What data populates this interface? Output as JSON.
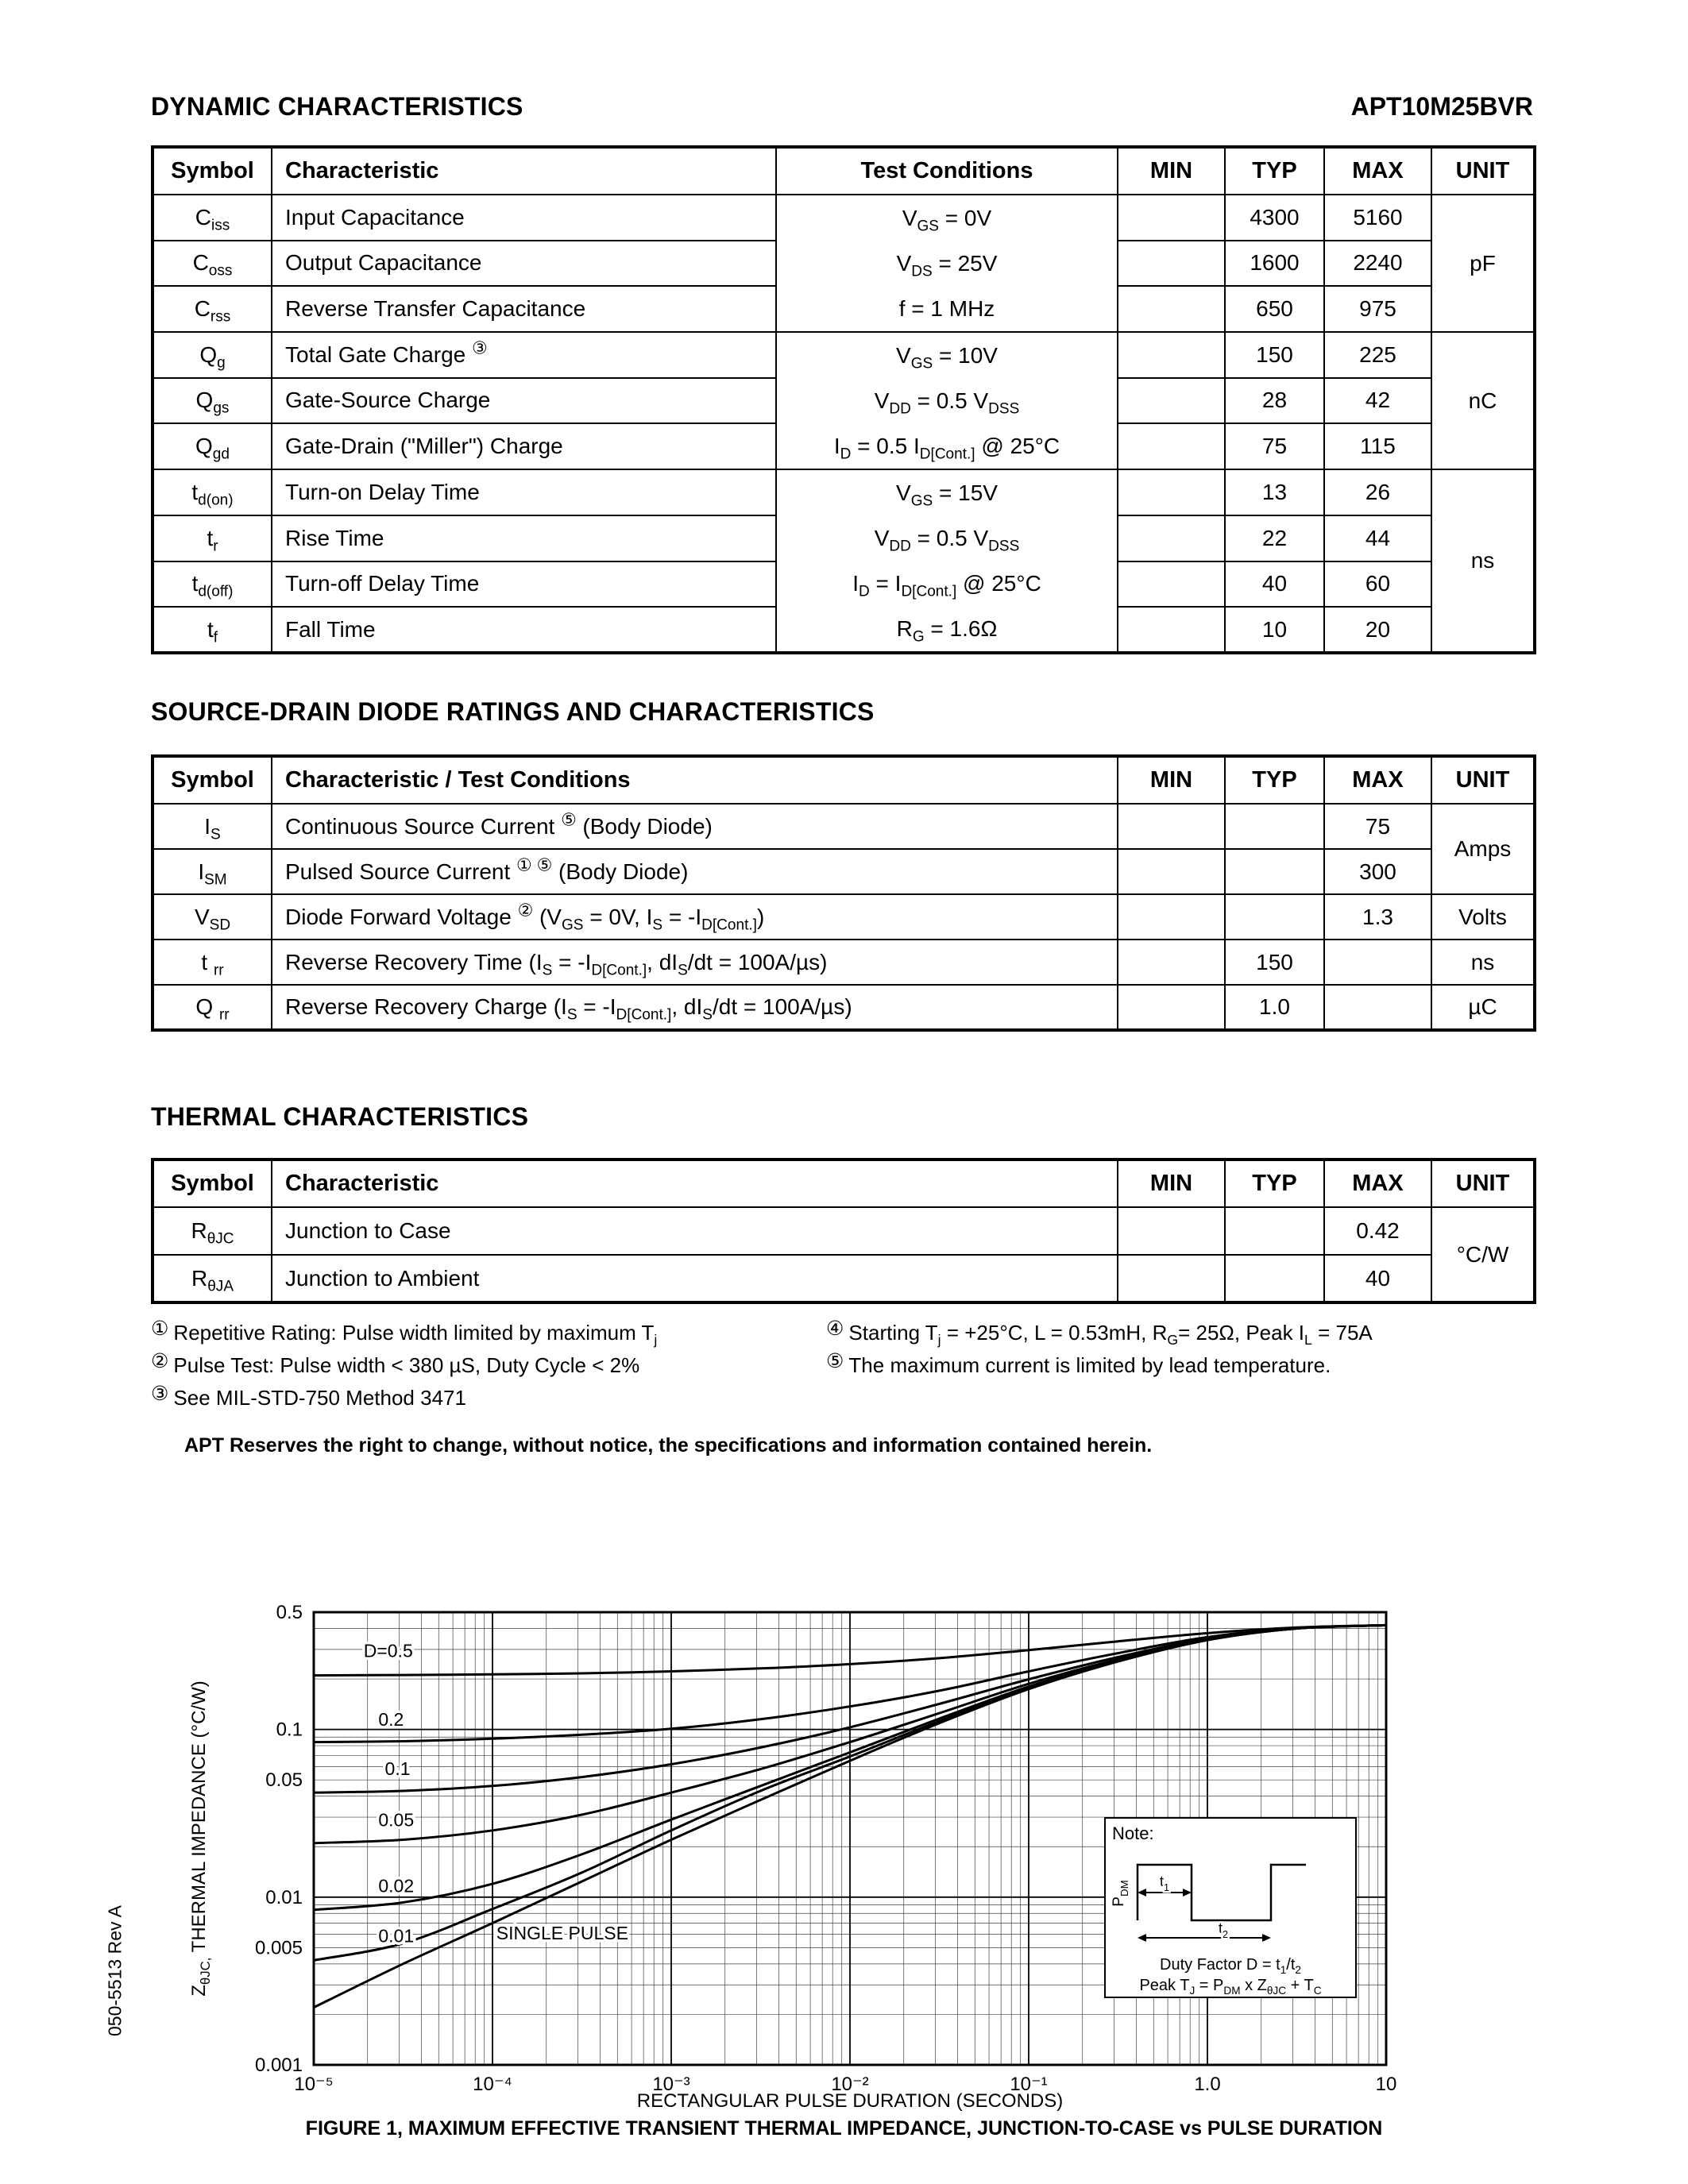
{
  "page": {
    "section1_title": "DYNAMIC CHARACTERISTICS",
    "part_number": "APT10M25BVR",
    "section2_title": "SOURCE-DRAIN DIODE RATINGS AND CHARACTERISTICS",
    "section3_title": "THERMAL CHARACTERISTICS",
    "disclaimer": "APT Reserves the right to change, without notice, the specifications and information contained herein.",
    "doc_number": "050-5513 Rev A"
  },
  "dynamic_table": {
    "headers": [
      "Symbol",
      "Characteristic",
      "Test Conditions",
      "MIN",
      "TYP",
      "MAX",
      "UNIT"
    ],
    "rows": [
      {
        "symbol": "C~iss~",
        "characteristic": "Input Capacitance",
        "min": "",
        "typ": "4300",
        "max": "5160"
      },
      {
        "symbol": "C~oss~",
        "characteristic": "Output Capacitance",
        "min": "",
        "typ": "1600",
        "max": "2240"
      },
      {
        "symbol": "C~rss~",
        "characteristic": "Reverse Transfer Capacitance",
        "min": "",
        "typ": "650",
        "max": "975"
      },
      {
        "symbol": "Q~g~",
        "characteristic": "Total Gate Charge ^③^",
        "min": "",
        "typ": "150",
        "max": "225"
      },
      {
        "symbol": "Q~gs~",
        "characteristic": "Gate-Source Charge",
        "min": "",
        "typ": "28",
        "max": "42"
      },
      {
        "symbol": "Q~gd~",
        "characteristic": "Gate-Drain (\"Miller\") Charge",
        "min": "",
        "typ": "75",
        "max": "115"
      },
      {
        "symbol": "t~d(on)~",
        "characteristic": "Turn-on Delay Time",
        "min": "",
        "typ": "13",
        "max": "26"
      },
      {
        "symbol": "t~r~",
        "characteristic": "Rise Time",
        "min": "",
        "typ": "22",
        "max": "44"
      },
      {
        "symbol": "t~d(off)~",
        "characteristic": "Turn-off Delay Time",
        "min": "",
        "typ": "40",
        "max": "60"
      },
      {
        "symbol": "t~f~",
        "characteristic": "Fall Time",
        "min": "",
        "typ": "10",
        "max": "20"
      }
    ],
    "cond_groups": [
      {
        "start": 0,
        "span": 3,
        "unit": "pF",
        "conditions": [
          "V~GS~ = 0V",
          "V~DS~ = 25V",
          "f = 1 MHz"
        ]
      },
      {
        "start": 3,
        "span": 3,
        "unit": "nC",
        "conditions": [
          "V~GS~ = 10V",
          "V~DD~ = 0.5 V~DSS~",
          "I~D~ = 0.5 I~D[Cont.]~ @ 25°C"
        ]
      },
      {
        "start": 6,
        "span": 4,
        "unit": "ns",
        "conditions": [
          "V~GS~ = 15V",
          "V~DD~ = 0.5 V~DSS~",
          "I~D~ = I~D[Cont.]~ @ 25°C",
          "R~G~ = 1.6Ω"
        ]
      }
    ]
  },
  "diode_table": {
    "headers": [
      "Symbol",
      "Characteristic / Test Conditions",
      "MIN",
      "TYP",
      "MAX",
      "UNIT"
    ],
    "rows": [
      {
        "symbol": "I~S~",
        "characteristic": "Continuous Source Current ^⑤^ (Body Diode)",
        "min": "",
        "typ": "",
        "max": "75"
      },
      {
        "symbol": "I~SM~",
        "characteristic": "Pulsed Source Current ^① ⑤^  (Body Diode)",
        "min": "",
        "typ": "",
        "max": "300"
      },
      {
        "symbol": "V~SD~",
        "characteristic": "Diode Forward Voltage ^②^ (V~GS~ = 0V, I~S~ = -I~D[Cont.]~)",
        "min": "",
        "typ": "",
        "max": "1.3"
      },
      {
        "symbol": "t ~rr~",
        "characteristic": "Reverse Recovery Time  (I~S~ = -I~D[Cont.]~, dI~S~/dt = 100A/µs)",
        "min": "",
        "typ": "150",
        "max": ""
      },
      {
        "symbol": "Q ~rr~",
        "characteristic": "Reverse Recovery Charge  (I~S~ = -I~D[Cont.]~, dI~S~/dt = 100A/µs)",
        "min": "",
        "typ": "1.0",
        "max": ""
      }
    ],
    "unit_groups": [
      {
        "start": 0,
        "span": 2,
        "unit": "Amps"
      },
      {
        "start": 2,
        "span": 1,
        "unit": "Volts"
      },
      {
        "start": 3,
        "span": 1,
        "unit": "ns"
      },
      {
        "start": 4,
        "span": 1,
        "unit": "µC"
      }
    ]
  },
  "thermal_table": {
    "headers": [
      "Symbol",
      "Characteristic",
      "MIN",
      "TYP",
      "MAX",
      "UNIT"
    ],
    "rows": [
      {
        "symbol": "R~θJC~",
        "characteristic": "Junction to Case",
        "min": "",
        "typ": "",
        "max": "0.42"
      },
      {
        "symbol": "R~θJA~",
        "characteristic": "Junction to Ambient",
        "min": "",
        "typ": "",
        "max": "40"
      }
    ],
    "unit_groups": [
      {
        "start": 0,
        "span": 2,
        "unit": "°C/W"
      }
    ]
  },
  "footnotes": {
    "left": [
      {
        "mark": "①",
        "text": "Repetitive Rating: Pulse width limited by maximum T~j~"
      },
      {
        "mark": "②",
        "text": "Pulse Test: Pulse width < 380 µS, Duty Cycle < 2%"
      },
      {
        "mark": "③",
        "text": "See MIL-STD-750 Method 3471"
      }
    ],
    "right": [
      {
        "mark": "④",
        "text": "Starting T~j~ = +25°C, L = 0.53mH, R~G~= 25Ω, Peak I~L~ = 75A"
      },
      {
        "mark": "⑤",
        "text": "The maximum current is limited by lead temperature."
      }
    ]
  },
  "chart_data": {
    "type": "line",
    "caption": "FIGURE 1, MAXIMUM EFFECTIVE TRANSIENT THERMAL IMPEDANCE, JUNCTION-TO-CASE vs PULSE DURATION",
    "xlabel": "RECTANGULAR PULSE DURATION (SECONDS)",
    "ylabel": "Z~θJC,~ THERMAL IMPEDANCE (°C/W)",
    "x_scale": "log",
    "y_scale": "log",
    "xlim": [
      1e-05,
      10
    ],
    "ylim": [
      0.001,
      0.5
    ],
    "grid": "log-log, major and minor lines",
    "x_ticks": [
      {
        "v": 1e-05,
        "label": "10⁻⁵"
      },
      {
        "v": 0.0001,
        "label": "10⁻⁴"
      },
      {
        "v": 0.001,
        "label": "10⁻³"
      },
      {
        "v": 0.01,
        "label": "10⁻²"
      },
      {
        "v": 0.1,
        "label": "10⁻¹"
      },
      {
        "v": 1,
        "label": "1.0"
      },
      {
        "v": 10,
        "label": "10"
      }
    ],
    "y_ticks": [
      {
        "v": 0.5,
        "label": "0.5"
      },
      {
        "v": 0.1,
        "label": "0.1"
      },
      {
        "v": 0.05,
        "label": "0.05"
      },
      {
        "v": 0.01,
        "label": "0.01"
      },
      {
        "v": 0.005,
        "label": "0.005"
      },
      {
        "v": 0.001,
        "label": "0.001"
      }
    ],
    "x": [
      1e-05,
      3.16e-05,
      0.0001,
      0.000316,
      0.001,
      0.00316,
      0.01,
      0.0316,
      0.1,
      0.316,
      1,
      3.16,
      10
    ],
    "series": [
      {
        "name": "D=0.5",
        "duty": 0.5,
        "label_t": 1.9e-05,
        "label_v": 0.27,
        "values": [
          0.21,
          0.211,
          0.213,
          0.216,
          0.222,
          0.231,
          0.245,
          0.266,
          0.297,
          0.335,
          0.375,
          0.405,
          0.418
        ]
      },
      {
        "name": "0.2",
        "duty": 0.2,
        "label_t": 2.3e-05,
        "label_v": 0.105,
        "values": [
          0.084,
          0.085,
          0.088,
          0.093,
          0.101,
          0.115,
          0.137,
          0.17,
          0.222,
          0.285,
          0.355,
          0.403,
          0.418
        ]
      },
      {
        "name": "0.1",
        "duty": 0.1,
        "label_t": 2.5e-05,
        "label_v": 0.0535,
        "values": [
          0.042,
          0.043,
          0.046,
          0.052,
          0.062,
          0.078,
          0.103,
          0.142,
          0.199,
          0.27,
          0.348,
          0.401,
          0.418
        ]
      },
      {
        "name": "0.05",
        "duty": 0.05,
        "label_t": 2.3e-05,
        "label_v": 0.0265,
        "values": [
          0.021,
          0.022,
          0.025,
          0.031,
          0.042,
          0.058,
          0.084,
          0.125,
          0.187,
          0.262,
          0.344,
          0.4,
          0.418
        ]
      },
      {
        "name": "0.02",
        "duty": 0.02,
        "label_t": 2.3e-05,
        "label_v": 0.0107,
        "values": [
          0.0084,
          0.0093,
          0.012,
          0.018,
          0.029,
          0.046,
          0.073,
          0.116,
          0.18,
          0.257,
          0.342,
          0.4,
          0.418
        ]
      },
      {
        "name": "0.01",
        "duty": 0.01,
        "label_t": 2.3e-05,
        "label_v": 0.0054,
        "values": [
          0.0042,
          0.0053,
          0.0085,
          0.014,
          0.025,
          0.043,
          0.069,
          0.112,
          0.177,
          0.255,
          0.341,
          0.4,
          0.418
        ]
      },
      {
        "name": "SINGLE PULSE",
        "duty": null,
        "label_t": 0.000105,
        "label_v": 0.0056,
        "values": [
          0.0022,
          0.004,
          0.007,
          0.0124,
          0.022,
          0.038,
          0.065,
          0.109,
          0.174,
          0.254,
          0.341,
          0.4,
          0.418
        ]
      }
    ],
    "note": {
      "title": "Note:",
      "pdm": "P~DM~",
      "t1": "t~1~",
      "t2": "t~2~",
      "duty": "Duty Factor  D = t~1~/t~2~",
      "peak": "Peak T~J~ = P~DM~ x Z~θJC~ + T~C~"
    }
  }
}
